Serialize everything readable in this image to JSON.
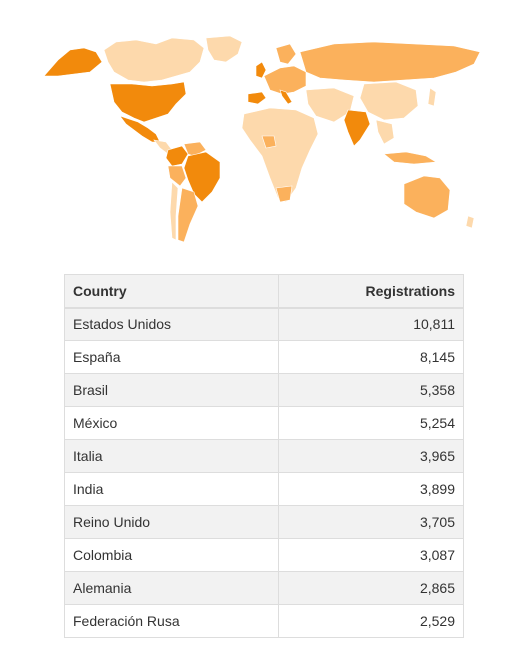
{
  "map": {
    "colors": {
      "ocean": "#ffffff",
      "low": "#fdd9ac",
      "mid": "#fbb15c",
      "high": "#f28a0c",
      "border": "#ffffff"
    }
  },
  "table": {
    "headers": {
      "country": "Country",
      "registrations": "Registrations"
    },
    "rows": [
      {
        "country": "Estados Unidos",
        "registrations": "10,811"
      },
      {
        "country": "España",
        "registrations": "8,145"
      },
      {
        "country": "Brasil",
        "registrations": "5,358"
      },
      {
        "country": "México",
        "registrations": "5,254"
      },
      {
        "country": "Italia",
        "registrations": "3,965"
      },
      {
        "country": "India",
        "registrations": "3,899"
      },
      {
        "country": "Reino Unido",
        "registrations": "3,705"
      },
      {
        "country": "Colombia",
        "registrations": "3,087"
      },
      {
        "country": "Alemania",
        "registrations": "2,865"
      },
      {
        "country": "Federación Rusa",
        "registrations": "2,529"
      }
    ]
  }
}
